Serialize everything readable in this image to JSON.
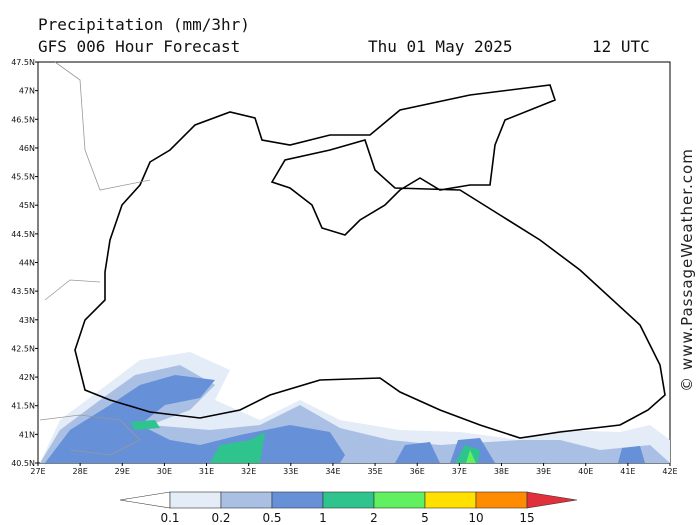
{
  "header": {
    "title": "Precipitation (mm/3hr)",
    "subtitle": "GFS 006 Hour Forecast",
    "date": "Thu 01 May 2025",
    "time": "12 UTC"
  },
  "axes": {
    "lat_labels": [
      "47.5N",
      "47N",
      "46.5N",
      "46N",
      "45.5N",
      "45N",
      "44.5N",
      "44N",
      "43.5N",
      "43N",
      "42.5N",
      "42N",
      "41.5N",
      "41N",
      "40.5N"
    ],
    "lon_labels": [
      "27E",
      "28E",
      "29E",
      "30E",
      "31E",
      "32E",
      "33E",
      "34E",
      "35E",
      "36E",
      "37E",
      "38E",
      "39E",
      "40E",
      "41E",
      "42E"
    ]
  },
  "legend": {
    "labels": [
      "0.1",
      "0.2",
      "0.5",
      "1",
      "2",
      "5",
      "10",
      "15"
    ],
    "colors": [
      "#ffffff",
      "#e4ecf8",
      "#a9c0e4",
      "#6690d8",
      "#2fc48e",
      "#60f060",
      "#ffe000",
      "#ff8c00",
      "#e0303a"
    ]
  },
  "watermark": "© www.PassageWeather.com"
}
